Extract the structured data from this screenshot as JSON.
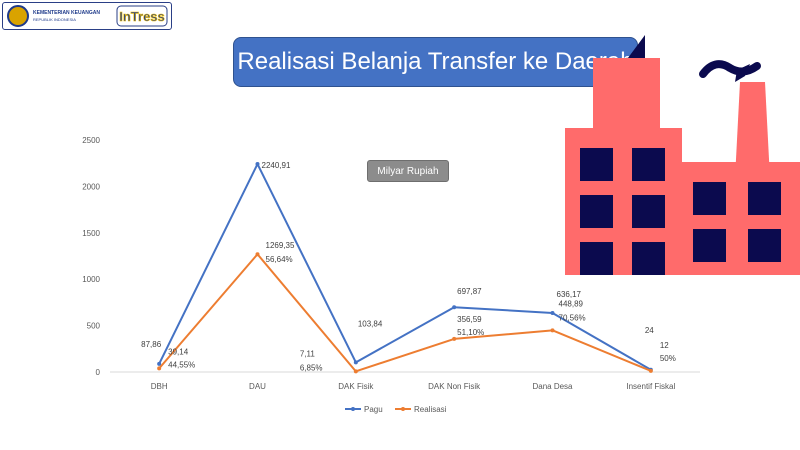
{
  "header": {
    "ministry_line1": "KEMENTERIAN KEUANGAN",
    "ministry_line2": "REPUBLIK INDONESIA",
    "brand": "InTress"
  },
  "title": "Realisasi Belanja Transfer ke Daerah",
  "unit_badge": "Milyar Rupiah",
  "colors": {
    "pagu": "#4472c4",
    "realisasi": "#ed7d31",
    "title_bg": "#4472c4",
    "factory": "#ff6b6b",
    "factory_windows": "#0b0a4e"
  },
  "chart_data": {
    "type": "line",
    "categories": [
      "DBH",
      "DAU",
      "DAK Fisik",
      "DAK Non Fisik",
      "Dana Desa",
      "Insentif Fiskal"
    ],
    "series": [
      {
        "name": "Pagu",
        "values": [
          87.86,
          2240.91,
          103.84,
          697.87,
          636.17,
          24
        ],
        "labels": [
          "87,86",
          "2240,91",
          "103,84",
          "697,87",
          "636,17",
          "24"
        ]
      },
      {
        "name": "Realisasi",
        "values": [
          39.14,
          1269.35,
          7.11,
          356.59,
          448.89,
          12
        ],
        "labels": [
          "39,14",
          "1269,35",
          "7,11",
          "356,59",
          "448,89",
          "12"
        ],
        "percent_labels": [
          "44,55%",
          "56,64%",
          "6,85%",
          "51,10%",
          "70,56%",
          "50%"
        ]
      }
    ],
    "ylim": [
      0,
      2500
    ],
    "yticks": [
      0,
      500,
      1000,
      1500,
      2000,
      2500
    ],
    "grid": false,
    "legend_position": "bottom"
  }
}
